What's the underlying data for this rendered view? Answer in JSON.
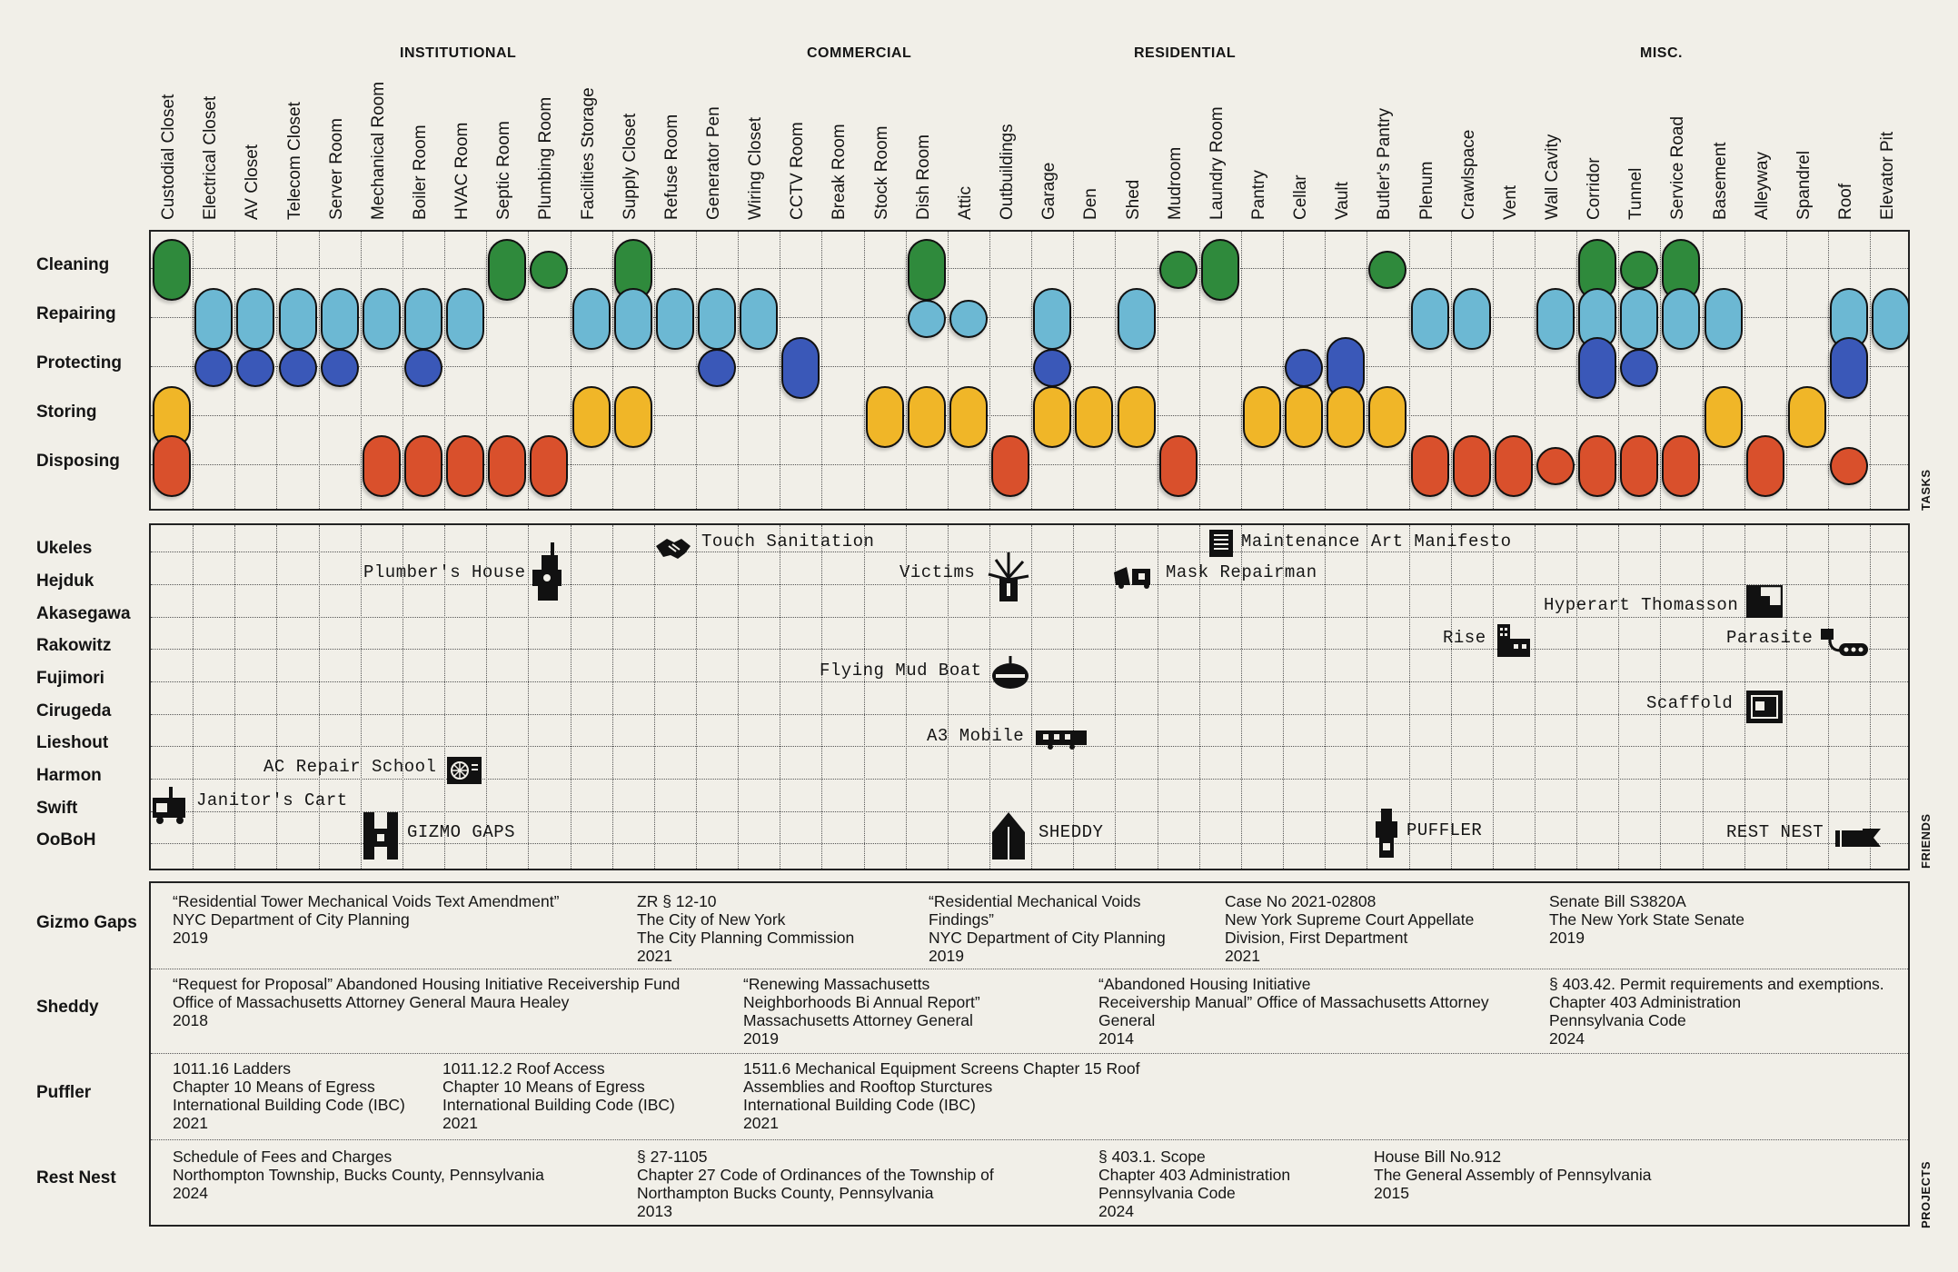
{
  "categories": [
    {
      "label": "INSTITUTIONAL"
    },
    {
      "label": "COMMERCIAL"
    },
    {
      "label": "RESIDENTIAL"
    },
    {
      "label": "MISC."
    }
  ],
  "columns": [
    "Custodial Closet",
    "Electrical Closet",
    "AV Closet",
    "Telecom Closet",
    "Server Room",
    "Mechanical Room",
    "Boiler Room",
    "HVAC Room",
    "Septic Room",
    "Plumbing Room",
    "Facilities Storage",
    "Supply Closet",
    "Refuse Room",
    "Generator Pen",
    "Wiring Closet",
    "CCTV Room",
    "Break Room",
    "Stock Room",
    "Dish Room",
    "Attic",
    "Outbuildings",
    "Garage",
    "Den",
    "Shed",
    "Mudroom",
    "Laundry Room",
    "Pantry",
    "Cellar",
    "Vault",
    "Butler's Pantry",
    "Plenum",
    "Crawlspace",
    "Vent",
    "Wall Cavity",
    "Corridor",
    "Tunnel",
    "Service Road",
    "Basement",
    "Alleyway",
    "Spandrel",
    "Roof",
    "Elevator Pit"
  ],
  "tasks": {
    "side_label": "TASKS",
    "rows": [
      "Cleaning",
      "Repairing",
      "Protecting",
      "Storing",
      "Disposing"
    ],
    "colors": {
      "Cleaning": "#2f8a3c",
      "Repairing": "#6cb8d3",
      "Protecting": "#3a58b8",
      "Storing": "#f0b628",
      "Disposing": "#d9502c"
    },
    "marks": [
      {
        "task": "Cleaning",
        "cols": [
          [
            0,
            "tall"
          ],
          [
            8,
            "tall"
          ],
          [
            9,
            "dot"
          ],
          [
            11,
            "tall"
          ],
          [
            18,
            "tall"
          ],
          [
            24,
            "dot"
          ],
          [
            25,
            "tall"
          ],
          [
            29,
            "dot"
          ],
          [
            34,
            "tall"
          ],
          [
            35,
            "dot"
          ],
          [
            36,
            "tall"
          ]
        ]
      },
      {
        "task": "Repairing",
        "cols": [
          [
            1,
            "tall"
          ],
          [
            2,
            "tall"
          ],
          [
            3,
            "tall"
          ],
          [
            4,
            "tall"
          ],
          [
            5,
            "tall"
          ],
          [
            6,
            "tall"
          ],
          [
            7,
            "tall"
          ],
          [
            10,
            "tall"
          ],
          [
            11,
            "tall"
          ],
          [
            12,
            "tall"
          ],
          [
            13,
            "tall"
          ],
          [
            14,
            "tall"
          ],
          [
            18,
            "dot"
          ],
          [
            19,
            "dot"
          ],
          [
            21,
            "tall"
          ],
          [
            23,
            "tall"
          ],
          [
            30,
            "tall"
          ],
          [
            31,
            "tall"
          ],
          [
            33,
            "tall"
          ],
          [
            34,
            "tall"
          ],
          [
            35,
            "tall"
          ],
          [
            36,
            "tall"
          ],
          [
            37,
            "tall"
          ],
          [
            40,
            "tall"
          ],
          [
            41,
            "tall"
          ]
        ]
      },
      {
        "task": "Protecting",
        "cols": [
          [
            1,
            "dot"
          ],
          [
            2,
            "dot"
          ],
          [
            3,
            "dot"
          ],
          [
            4,
            "dot"
          ],
          [
            6,
            "dot"
          ],
          [
            13,
            "dot"
          ],
          [
            15,
            "tall"
          ],
          [
            21,
            "dot"
          ],
          [
            27,
            "dot"
          ],
          [
            28,
            "tall"
          ],
          [
            34,
            "tall"
          ],
          [
            35,
            "dot"
          ],
          [
            40,
            "tall"
          ]
        ]
      },
      {
        "task": "Storing",
        "cols": [
          [
            0,
            "tall"
          ],
          [
            10,
            "tall"
          ],
          [
            11,
            "tall"
          ],
          [
            17,
            "tall"
          ],
          [
            18,
            "tall"
          ],
          [
            19,
            "tall"
          ],
          [
            21,
            "tall"
          ],
          [
            22,
            "tall"
          ],
          [
            23,
            "tall"
          ],
          [
            26,
            "tall"
          ],
          [
            27,
            "tall"
          ],
          [
            28,
            "tall"
          ],
          [
            29,
            "tall"
          ],
          [
            37,
            "tall"
          ],
          [
            39,
            "tall"
          ]
        ]
      },
      {
        "task": "Disposing",
        "cols": [
          [
            0,
            "tall"
          ],
          [
            5,
            "tall"
          ],
          [
            6,
            "tall"
          ],
          [
            7,
            "tall"
          ],
          [
            8,
            "tall"
          ],
          [
            9,
            "tall"
          ],
          [
            20,
            "tall"
          ],
          [
            24,
            "tall"
          ],
          [
            30,
            "tall"
          ],
          [
            31,
            "tall"
          ],
          [
            32,
            "tall"
          ],
          [
            33,
            "dot"
          ],
          [
            34,
            "tall"
          ],
          [
            35,
            "tall"
          ],
          [
            36,
            "tall"
          ],
          [
            38,
            "tall"
          ],
          [
            40,
            "dot"
          ]
        ]
      }
    ]
  },
  "friends": {
    "side_label": "FRIENDS",
    "rows": [
      "Ukeles",
      "Hejduk",
      "Akasegawa",
      "Rakowitz",
      "Fujimori",
      "Cirugeda",
      "Lieshout",
      "Harmon",
      "Swift",
      "OoBoH"
    ],
    "projects": [
      {
        "name": "Touch Sanitation",
        "icon": "handshake-icon"
      },
      {
        "name": "Maintenance Art Manifesto",
        "icon": "document-icon"
      },
      {
        "name": "Plumber's House",
        "icon": "house-icon"
      },
      {
        "name": "Victims",
        "icon": "burst-icon"
      },
      {
        "name": "Mask Repairman",
        "icon": "mask-icon"
      },
      {
        "name": "Hyperart Thomasson",
        "icon": "stairs-icon"
      },
      {
        "name": "Rise",
        "icon": "tower-icon"
      },
      {
        "name": "Parasite",
        "icon": "parasite-icon"
      },
      {
        "name": "Flying Mud Boat",
        "icon": "mudboat-icon"
      },
      {
        "name": "Scaffold",
        "icon": "scaffold-icon"
      },
      {
        "name": "A3 Mobile",
        "icon": "trailer-icon"
      },
      {
        "name": "AC Repair School",
        "icon": "ac-unit-icon"
      },
      {
        "name": "Janitor's Cart",
        "icon": "cart-icon"
      },
      {
        "name": "GIZMO GAPS",
        "icon": "gizmo-icon"
      },
      {
        "name": "SHEDDY",
        "icon": "shed-icon"
      },
      {
        "name": "PUFFLER",
        "icon": "puffler-icon"
      },
      {
        "name": "REST NEST",
        "icon": "nest-icon"
      }
    ]
  },
  "projects_panel": {
    "side_label": "PROJECTS",
    "rows": [
      "Gizmo Gaps",
      "Sheddy",
      "Puffler",
      "Rest Nest"
    ],
    "gizmo": [
      "“Residential Tower Mechanical Voids Text Amendment”\nNYC Department of City Planning\n2019",
      "ZR § 12-10\nThe City of New York\nThe City Planning Commission\n2021",
      "“Residential Mechanical Voids\nFindings”\nNYC Department of City Planning\n2019",
      "Case No 2021-02808\nNew York Supreme Court Appellate\nDivision, First Department\n2021",
      "Senate Bill S3820A\nThe New York State Senate\n2019"
    ],
    "sheddy": [
      "“Request for Proposal” Abandoned Housing Initiative Receivership Fund\nOffice of Massachusetts Attorney General Maura Healey\n2018",
      "“Renewing Massachusetts\nNeighborhoods Bi Annual Report”\nMassachusetts Attorney General\n2019",
      "“Abandoned Housing Initiative\nReceivership Manual” Office of Massachusetts Attorney\nGeneral\n2014",
      "§ 403.42. Permit requirements and exemptions.\nChapter 403 Administration\nPennsylvania Code\n2024"
    ],
    "puffler": [
      "1011.16 Ladders\nChapter 10 Means of Egress\nInternational Building Code (IBC)\n2021",
      "1011.12.2 Roof Access\nChapter 10 Means of Egress\nInternational Building Code (IBC)\n2021",
      "1511.6 Mechanical Equipment Screens Chapter 15 Roof\nAssemblies and Rooftop Sturctures\nInternational Building Code (IBC)\n2021"
    ],
    "restnest": [
      "Schedule of Fees and Charges\nNorthompton Township, Bucks County, Pennsylvania\n2024",
      "§ 27-1105\nChapter 27 Code of Ordinances of the Township of\nNorthampton Bucks County, Pennsylvania\n2013",
      "§ 403.1. Scope\nChapter 403 Administration\nPennsylvania Code\n2024",
      "House Bill No.912\nThe General Assembly of  Pennsylvania\n2015"
    ]
  }
}
